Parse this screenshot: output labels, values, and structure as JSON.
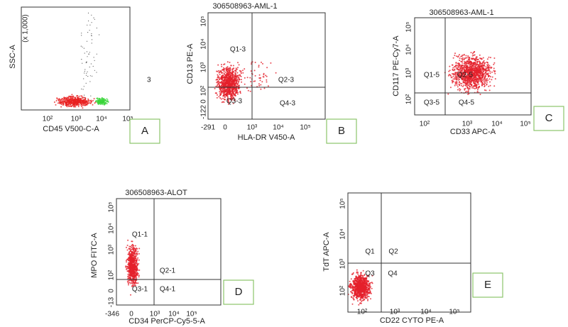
{
  "panels": [
    {
      "letter": "A",
      "y_title": "SSC-A",
      "y_unit": "(x 1,000)",
      "x_title": "CD45 V500-C-A",
      "y_ticks": [],
      "x_ticks": [
        "10²",
        "10³",
        "10⁴",
        "10⁵"
      ],
      "quadrants": [],
      "note": "3"
    },
    {
      "letter": "B",
      "title": "306508963-AML-1",
      "y_title": "CD13 PE-A",
      "x_title": "HLA-DR V450-A",
      "y_ticks": [
        "10⁵",
        "10⁴",
        "10³",
        "10²",
        "0",
        "-122"
      ],
      "x_ticks": [
        "-291",
        "0",
        "10³",
        "10⁴",
        "10⁵"
      ],
      "quadrants": [
        "Q1-3",
        "Q2-3",
        "Q3-3",
        "Q4-3"
      ]
    },
    {
      "letter": "C",
      "title": "306508963-AML-1",
      "y_title": "CD117 PE-Cy7-A",
      "x_title": "CD33 APC-A",
      "y_ticks": [
        "10⁵",
        "10⁴",
        "10³",
        "10²"
      ],
      "x_ticks": [
        "10²",
        "10³",
        "10⁴",
        "10⁵"
      ],
      "quadrants": [
        "Q1-5",
        "Q2-5",
        "Q3-5",
        "Q4-5"
      ]
    },
    {
      "letter": "D",
      "title": "306508963-ALOT",
      "y_title": "MPO FITC-A",
      "x_title": "CD34 PerCP-Cy5-5-A",
      "y_ticks": [
        "10⁵",
        "10⁴",
        "10³",
        "10²",
        "0",
        "-13"
      ],
      "x_ticks": [
        "-346",
        "0",
        "10³",
        "10⁴",
        "10⁵"
      ],
      "quadrants": [
        "Q1-1",
        "Q2-1",
        "Q3-1",
        "Q4-1"
      ]
    },
    {
      "letter": "E",
      "y_title": "TdT APC-A",
      "x_title": "CD22 CYTO PE-A",
      "y_ticks": [
        "10⁵",
        "10⁴",
        "10³",
        "10²"
      ],
      "x_ticks": [
        "10²",
        "10³",
        "10⁴",
        "10⁵"
      ],
      "quadrants": [
        "Q1",
        "Q2",
        "Q3",
        "Q4"
      ]
    }
  ]
}
